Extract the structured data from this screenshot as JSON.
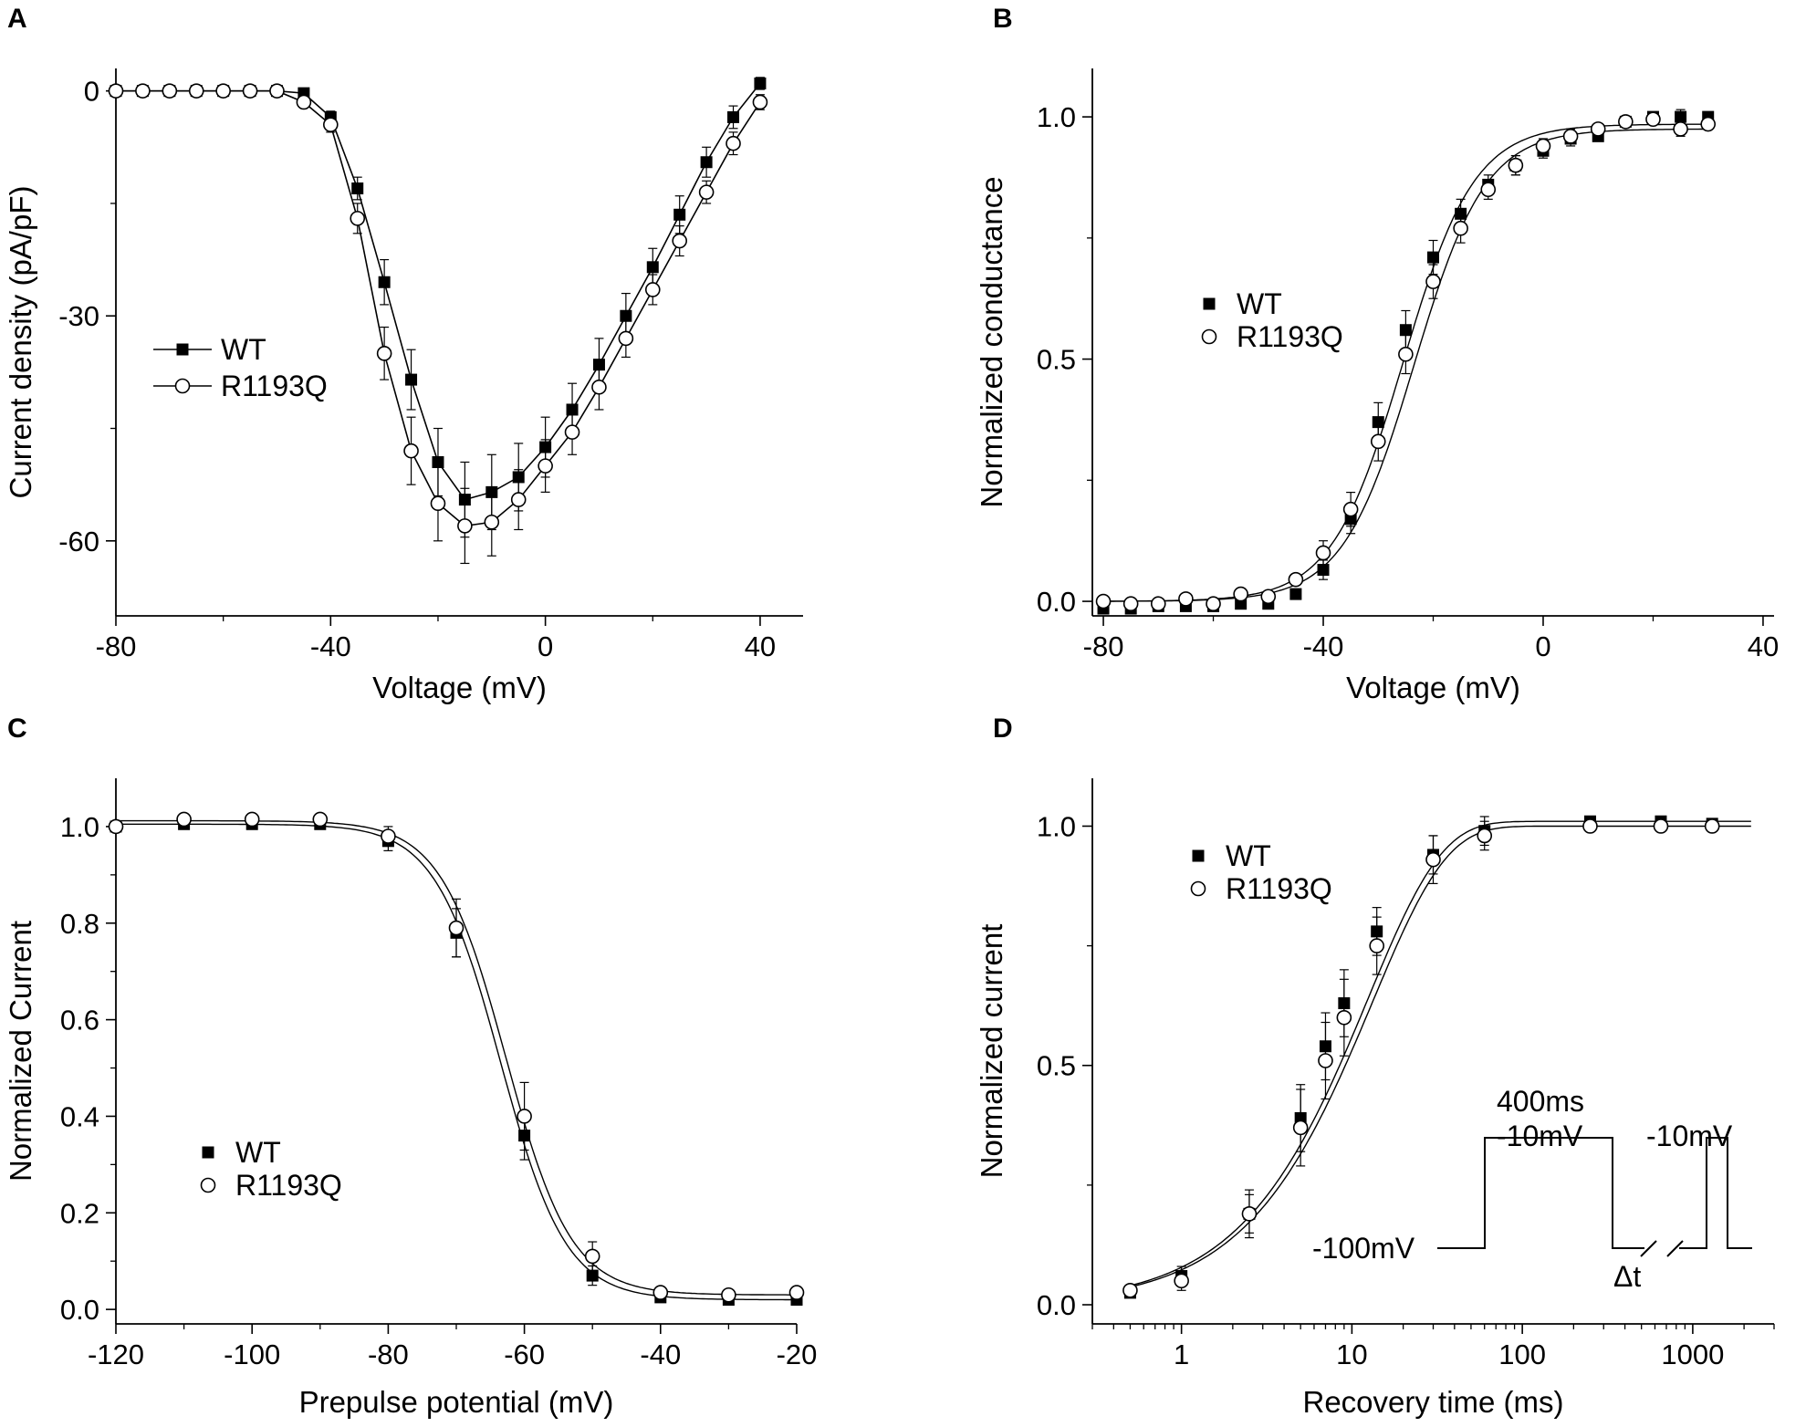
{
  "colors": {
    "ink": "#000000",
    "background": "#ffffff",
    "open_fill": "#ffffff"
  },
  "chart_data": [
    {
      "panel": "A",
      "type": "line",
      "xlabel": "Voltage (mV)",
      "ylabel": "Current density (pA/pF)",
      "xlim": [
        -80,
        48
      ],
      "ylim": [
        -70,
        3
      ],
      "xticks": [
        -80,
        -40,
        0,
        40
      ],
      "yticks": [
        0,
        -30,
        -60
      ],
      "legend": {
        "position": "left-middle",
        "entries": [
          "WT",
          "R1193Q"
        ]
      },
      "x": [
        -80,
        -75,
        -70,
        -65,
        -60,
        -55,
        -50,
        -45,
        -40,
        -35,
        -30,
        -25,
        -20,
        -15,
        -10,
        -5,
        0,
        5,
        10,
        15,
        20,
        25,
        30,
        35,
        40
      ],
      "series": [
        {
          "name": "WT",
          "marker": "filled-square",
          "values": [
            0,
            0,
            0,
            0,
            0,
            0,
            0,
            -0.3,
            -3.5,
            -13,
            -25.5,
            -38.5,
            -49.5,
            -54.5,
            -53.5,
            -51.5,
            -47.5,
            -42.5,
            -36.5,
            -30,
            -23.5,
            -16.5,
            -9.5,
            -3.5,
            1
          ],
          "errors": [
            0,
            0,
            0,
            0,
            0,
            0,
            0,
            0.5,
            0.8,
            1.5,
            3,
            4,
            4.5,
            5,
            5,
            4.5,
            4,
            3.5,
            3.5,
            3,
            2.5,
            2.5,
            2,
            1.5,
            0.8
          ]
        },
        {
          "name": "R1193Q",
          "marker": "open-circle",
          "values": [
            0,
            0,
            0,
            0,
            0,
            0,
            0,
            -1.5,
            -4.5,
            -17,
            -35,
            -48,
            -55,
            -58,
            -57.5,
            -54.5,
            -50,
            -45.5,
            -39.5,
            -33,
            -26.5,
            -20,
            -13.5,
            -7,
            -1.5
          ],
          "errors": [
            0,
            0,
            0,
            0,
            0,
            0,
            0,
            0.5,
            1,
            2,
            3.5,
            4.5,
            5,
            5,
            4.5,
            4,
            3.5,
            3,
            3,
            2.5,
            2,
            2,
            1.5,
            1.5,
            1
          ]
        }
      ]
    },
    {
      "panel": "B",
      "type": "scatter",
      "xlabel": "Voltage (mV)",
      "ylabel": "Normalized conductance",
      "xlim": [
        -82,
        42
      ],
      "ylim": [
        -0.03,
        1.1
      ],
      "xticks": [
        -80,
        -40,
        0,
        40
      ],
      "yticks": [
        0.0,
        0.5,
        1.0
      ],
      "ytick_labels": [
        "0.0",
        "0.5",
        "1.0"
      ],
      "legend": {
        "position": "center-left",
        "entries": [
          "WT",
          "R1193Q"
        ]
      },
      "x": [
        -80,
        -75,
        -70,
        -65,
        -60,
        -55,
        -50,
        -45,
        -40,
        -35,
        -30,
        -25,
        -20,
        -15,
        -10,
        -5,
        0,
        5,
        10,
        15,
        20,
        25,
        30
      ],
      "series": [
        {
          "name": "WT",
          "marker": "filled-square",
          "values": [
            -0.015,
            -0.015,
            -0.01,
            -0.01,
            -0.01,
            -0.005,
            -0.005,
            0.015,
            0.065,
            0.17,
            0.37,
            0.56,
            0.71,
            0.8,
            0.86,
            0.9,
            0.93,
            0.955,
            0.96,
            0.99,
            1.0,
            1.0,
            1.0
          ],
          "errors": [
            0,
            0,
            0,
            0,
            0,
            0,
            0,
            0.01,
            0.02,
            0.03,
            0.04,
            0.04,
            0.035,
            0.03,
            0.02,
            0.02,
            0.015,
            0.015,
            0.01,
            0.01,
            0.01,
            0.015,
            0.01
          ],
          "fit": {
            "model": "boltzmann",
            "v_half": -23.5,
            "k": 6.5,
            "bottom": 0,
            "top": 0.975
          }
        },
        {
          "name": "R1193Q",
          "marker": "open-circle",
          "values": [
            0,
            -0.005,
            -0.005,
            0.005,
            -0.005,
            0.015,
            0.01,
            0.045,
            0.1,
            0.19,
            0.33,
            0.51,
            0.66,
            0.77,
            0.85,
            0.9,
            0.94,
            0.96,
            0.975,
            0.99,
            0.995,
            0.975,
            0.985
          ],
          "errors": [
            0,
            0,
            0,
            0,
            0,
            0,
            0,
            0.01,
            0.025,
            0.035,
            0.04,
            0.04,
            0.035,
            0.03,
            0.02,
            0.02,
            0.015,
            0.015,
            0.01,
            0.01,
            0.01,
            0.015,
            0.01
          ],
          "fit": {
            "model": "boltzmann",
            "v_half": -25.5,
            "k": 6.5,
            "bottom": 0,
            "top": 0.985
          }
        }
      ]
    },
    {
      "panel": "C",
      "type": "scatter",
      "xlabel": "Prepulse potential (mV)",
      "ylabel": "Normalized Current",
      "xlim": [
        -120,
        -20
      ],
      "ylim": [
        -0.03,
        1.1
      ],
      "xticks": [
        -120,
        -100,
        -80,
        -60,
        -40,
        -20
      ],
      "yticks": [
        0.0,
        0.2,
        0.4,
        0.6,
        0.8,
        1.0
      ],
      "ytick_labels": [
        "0.0",
        "0.2",
        "0.4",
        "0.6",
        "0.8",
        "1.0"
      ],
      "legend": {
        "position": "bottom-left",
        "entries": [
          "WT",
          "R1193Q"
        ]
      },
      "x": [
        -120,
        -110,
        -100,
        -90,
        -80,
        -70,
        -60,
        -50,
        -40,
        -30,
        -20
      ],
      "series": [
        {
          "name": "WT",
          "marker": "filled-square",
          "values": [
            1.0,
            1.005,
            1.005,
            1.005,
            0.97,
            0.78,
            0.36,
            0.07,
            0.025,
            0.02,
            0.02
          ],
          "errors": [
            0,
            0.01,
            0.01,
            0.01,
            0.02,
            0.05,
            0.05,
            0.02,
            0.01,
            0.01,
            0.01
          ],
          "fit": {
            "model": "boltzmann",
            "v_half": -63.5,
            "k": -4.8,
            "bottom": 0.02,
            "top": 1.005
          }
        },
        {
          "name": "R1193Q",
          "marker": "open-circle",
          "values": [
            1.0,
            1.015,
            1.015,
            1.015,
            0.98,
            0.79,
            0.4,
            0.11,
            0.035,
            0.03,
            0.035
          ],
          "errors": [
            0,
            0.01,
            0.01,
            0.01,
            0.02,
            0.06,
            0.07,
            0.03,
            0.01,
            0.01,
            0.01
          ],
          "fit": {
            "model": "boltzmann",
            "v_half": -62.7,
            "k": -4.8,
            "bottom": 0.03,
            "top": 1.012
          }
        }
      ]
    },
    {
      "panel": "D",
      "type": "scatter",
      "xscale": "log",
      "xlabel": "Recovery time (ms)",
      "ylabel": "Normalized current",
      "xlim": [
        0.3,
        3000
      ],
      "ylim": [
        -0.04,
        1.1
      ],
      "xticks": [
        1,
        10,
        100,
        1000
      ],
      "yticks": [
        0.0,
        0.5,
        1.0
      ],
      "ytick_labels": [
        "0.0",
        "0.5",
        "1.0"
      ],
      "legend": {
        "position": "top-left",
        "entries": [
          "WT",
          "R1193Q"
        ]
      },
      "x": [
        0.5,
        1,
        2.5,
        5,
        7,
        9,
        14,
        30,
        60,
        250,
        650,
        1300
      ],
      "series": [
        {
          "name": "WT",
          "marker": "filled-square",
          "values": [
            0.025,
            0.06,
            0.19,
            0.39,
            0.54,
            0.63,
            0.78,
            0.94,
            0.99,
            1.01,
            1.01,
            1.005
          ],
          "errors": [
            0.01,
            0.02,
            0.04,
            0.07,
            0.07,
            0.07,
            0.05,
            0.04,
            0.03,
            0.01,
            0.01,
            0.01
          ],
          "fit": {
            "model": "exponential",
            "tau": 12.4,
            "top": 1.01,
            "bottom": 0.0
          }
        },
        {
          "name": "R1193Q",
          "marker": "open-circle",
          "values": [
            0.03,
            0.05,
            0.19,
            0.37,
            0.51,
            0.6,
            0.75,
            0.93,
            0.98,
            1.0,
            1.0,
            1.0
          ],
          "errors": [
            0.01,
            0.02,
            0.05,
            0.08,
            0.08,
            0.08,
            0.06,
            0.05,
            0.03,
            0.01,
            0.01,
            0.01
          ],
          "fit": {
            "model": "exponential",
            "tau": 13.2,
            "top": 1.0,
            "bottom": 0.0
          }
        }
      ],
      "inset": {
        "label_duration": "400ms",
        "label_step": "-10mV",
        "label_holding": "-100mV",
        "label_test": "-10mV",
        "label_interval": "Δt"
      }
    }
  ]
}
